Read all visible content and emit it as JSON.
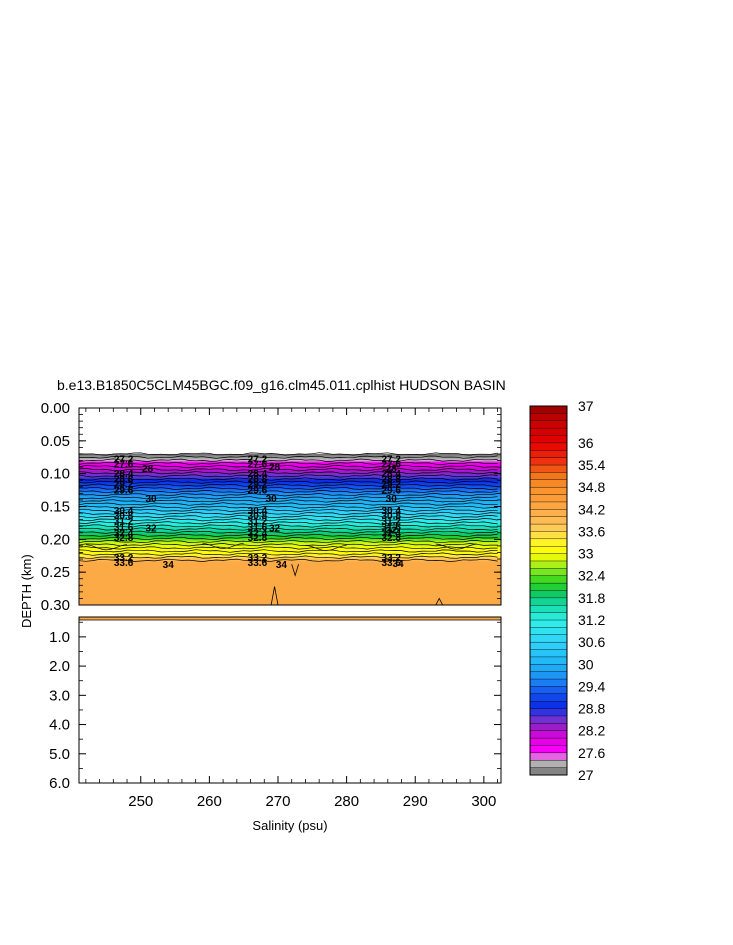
{
  "chart_data": {
    "type": "heatmap",
    "title": "b.e13.B1850C5CLM45BGC.f09_g16.clm45.011.cplhist HUDSON BASIN",
    "xlabel": "Salinity (psu)",
    "ylabel": "DEPTH (km)",
    "xlim": [
      241,
      302.5
    ],
    "x_ticks": [
      "250",
      "260",
      "270",
      "280",
      "290",
      "300"
    ],
    "upper_panel": {
      "ylim": [
        0.0,
        0.3
      ],
      "y_ticks": [
        "0.00",
        "0.05",
        "0.10",
        "0.15",
        "0.20",
        "0.25",
        "0.30"
      ]
    },
    "lower_panel": {
      "ylim": [
        0.32,
        6.0
      ],
      "y_ticks": [
        "1.0",
        "2.0",
        "3.0",
        "4.0",
        "5.0",
        "6.0"
      ]
    },
    "colorbar": {
      "range": [
        27,
        37
      ],
      "ticks": [
        "37",
        "36",
        "35.4",
        "34.8",
        "34.2",
        "33.6",
        "33",
        "32.4",
        "31.8",
        "31.2",
        "30.6",
        "30",
        "29.4",
        "28.8",
        "28.2",
        "27.6",
        "27"
      ],
      "tick_values": [
        37,
        36,
        35.4,
        34.8,
        34.2,
        33.6,
        33,
        32.4,
        31.8,
        31.2,
        30.6,
        30,
        29.4,
        28.8,
        28.2,
        27.6,
        27
      ],
      "color_stops": [
        {
          "v": 27.0,
          "c": "#6e6e6e"
        },
        {
          "v": 27.4,
          "c": "#c8c8c8"
        },
        {
          "v": 27.6,
          "c": "#ff00ff"
        },
        {
          "v": 28.0,
          "c": "#e000e0"
        },
        {
          "v": 28.3,
          "c": "#9a1ec8"
        },
        {
          "v": 28.6,
          "c": "#5a3cd6"
        },
        {
          "v": 28.8,
          "c": "#0a28e6"
        },
        {
          "v": 29.2,
          "c": "#1450f0"
        },
        {
          "v": 29.6,
          "c": "#1e8cf5"
        },
        {
          "v": 30.0,
          "c": "#1eb4f5"
        },
        {
          "v": 30.6,
          "c": "#32d2fa"
        },
        {
          "v": 31.2,
          "c": "#2ef0e6"
        },
        {
          "v": 31.6,
          "c": "#14dcaa"
        },
        {
          "v": 31.9,
          "c": "#10c864"
        },
        {
          "v": 32.2,
          "c": "#28d21e"
        },
        {
          "v": 32.5,
          "c": "#78e61e"
        },
        {
          "v": 32.8,
          "c": "#c8f514"
        },
        {
          "v": 33.0,
          "c": "#ffff00"
        },
        {
          "v": 33.4,
          "c": "#fff032"
        },
        {
          "v": 33.6,
          "c": "#ffd25a"
        },
        {
          "v": 34.0,
          "c": "#fcb450"
        },
        {
          "v": 34.4,
          "c": "#fca03c"
        },
        {
          "v": 34.8,
          "c": "#f8902a"
        },
        {
          "v": 35.2,
          "c": "#f06e14"
        },
        {
          "v": 35.4,
          "c": "#f03c14"
        },
        {
          "v": 36.0,
          "c": "#e60000"
        },
        {
          "v": 36.6,
          "c": "#c80000"
        },
        {
          "v": 37.0,
          "c": "#960000"
        }
      ]
    },
    "salinity_profile": [
      {
        "depth": 0.07,
        "salinity": 27.0
      },
      {
        "depth": 0.08,
        "salinity": 27.4
      },
      {
        "depth": 0.085,
        "salinity": 27.8
      },
      {
        "depth": 0.095,
        "salinity": 28.2
      },
      {
        "depth": 0.105,
        "salinity": 28.6
      },
      {
        "depth": 0.115,
        "salinity": 29.0
      },
      {
        "depth": 0.125,
        "salinity": 29.4
      },
      {
        "depth": 0.135,
        "salinity": 29.8
      },
      {
        "depth": 0.145,
        "salinity": 30.0
      },
      {
        "depth": 0.155,
        "salinity": 30.4
      },
      {
        "depth": 0.165,
        "salinity": 30.8
      },
      {
        "depth": 0.175,
        "salinity": 31.2
      },
      {
        "depth": 0.185,
        "salinity": 31.6
      },
      {
        "depth": 0.195,
        "salinity": 32.0
      },
      {
        "depth": 0.2,
        "salinity": 32.4
      },
      {
        "depth": 0.205,
        "salinity": 32.8
      },
      {
        "depth": 0.215,
        "salinity": 33.0
      },
      {
        "depth": 0.222,
        "salinity": 33.2
      },
      {
        "depth": 0.228,
        "salinity": 33.6
      },
      {
        "depth": 0.235,
        "salinity": 34.2
      },
      {
        "depth": 0.3,
        "salinity": 34.2
      }
    ],
    "contour_labels": [
      {
        "text": "27.2",
        "x": 247.5,
        "depth": 0.078
      },
      {
        "text": "27.6",
        "x": 247.5,
        "depth": 0.085
      },
      {
        "text": "28",
        "x": 251.0,
        "depth": 0.092
      },
      {
        "text": "28.4",
        "x": 247.5,
        "depth": 0.1
      },
      {
        "text": "28.8",
        "x": 247.5,
        "depth": 0.108
      },
      {
        "text": "29.2",
        "x": 247.5,
        "depth": 0.116
      },
      {
        "text": "29.6",
        "x": 247.5,
        "depth": 0.125
      },
      {
        "text": "30",
        "x": 251.5,
        "depth": 0.138
      },
      {
        "text": "30.4",
        "x": 247.5,
        "depth": 0.156
      },
      {
        "text": "30.8",
        "x": 247.5,
        "depth": 0.164
      },
      {
        "text": "31.2",
        "x": 247.5,
        "depth": 0.172
      },
      {
        "text": "31.6",
        "x": 247.5,
        "depth": 0.181
      },
      {
        "text": "32",
        "x": 251.5,
        "depth": 0.183
      },
      {
        "text": "32.4",
        "x": 247.5,
        "depth": 0.19
      },
      {
        "text": "32.8",
        "x": 247.5,
        "depth": 0.197
      },
      {
        "text": "33.2",
        "x": 247.5,
        "depth": 0.228
      },
      {
        "text": "33.6",
        "x": 247.5,
        "depth": 0.235
      },
      {
        "text": "34",
        "x": 254.0,
        "depth": 0.238
      },
      {
        "text": "27.2",
        "x": 267.0,
        "depth": 0.078
      },
      {
        "text": "27.6",
        "x": 267.0,
        "depth": 0.085
      },
      {
        "text": "28",
        "x": 269.5,
        "depth": 0.09
      },
      {
        "text": "28.4",
        "x": 267.0,
        "depth": 0.1
      },
      {
        "text": "28.8",
        "x": 267.0,
        "depth": 0.108
      },
      {
        "text": "29.2",
        "x": 267.0,
        "depth": 0.116
      },
      {
        "text": "29.6",
        "x": 267.0,
        "depth": 0.125
      },
      {
        "text": "30",
        "x": 269.0,
        "depth": 0.138
      },
      {
        "text": "30.4",
        "x": 267.0,
        "depth": 0.156
      },
      {
        "text": "30.8",
        "x": 267.0,
        "depth": 0.164
      },
      {
        "text": "31.2",
        "x": 267.0,
        "depth": 0.172
      },
      {
        "text": "31.6",
        "x": 267.0,
        "depth": 0.181
      },
      {
        "text": "32",
        "x": 269.5,
        "depth": 0.183
      },
      {
        "text": "32.4",
        "x": 267.0,
        "depth": 0.19
      },
      {
        "text": "32.8",
        "x": 267.0,
        "depth": 0.197
      },
      {
        "text": "33.2",
        "x": 267.0,
        "depth": 0.228
      },
      {
        "text": "33.6",
        "x": 267.0,
        "depth": 0.235
      },
      {
        "text": "34",
        "x": 270.5,
        "depth": 0.238
      },
      {
        "text": "27.2",
        "x": 286.5,
        "depth": 0.078
      },
      {
        "text": "27.6",
        "x": 286.5,
        "depth": 0.085
      },
      {
        "text": "28",
        "x": 286.5,
        "depth": 0.092
      },
      {
        "text": "28.4",
        "x": 286.5,
        "depth": 0.1
      },
      {
        "text": "28.8",
        "x": 286.5,
        "depth": 0.108
      },
      {
        "text": "29.2",
        "x": 286.5,
        "depth": 0.116
      },
      {
        "text": "29.6",
        "x": 286.5,
        "depth": 0.125
      },
      {
        "text": "30",
        "x": 286.5,
        "depth": 0.138
      },
      {
        "text": "30.4",
        "x": 286.5,
        "depth": 0.156
      },
      {
        "text": "30.8",
        "x": 286.5,
        "depth": 0.164
      },
      {
        "text": "31.2",
        "x": 286.5,
        "depth": 0.172
      },
      {
        "text": "31.6",
        "x": 286.5,
        "depth": 0.181
      },
      {
        "text": "32",
        "x": 286.5,
        "depth": 0.186
      },
      {
        "text": "32.4",
        "x": 286.5,
        "depth": 0.19
      },
      {
        "text": "32.8",
        "x": 286.5,
        "depth": 0.197
      },
      {
        "text": "33.2",
        "x": 286.5,
        "depth": 0.228
      },
      {
        "text": "33.6",
        "x": 286.5,
        "depth": 0.235
      },
      {
        "text": "34",
        "x": 287.5,
        "depth": 0.237
      }
    ]
  }
}
